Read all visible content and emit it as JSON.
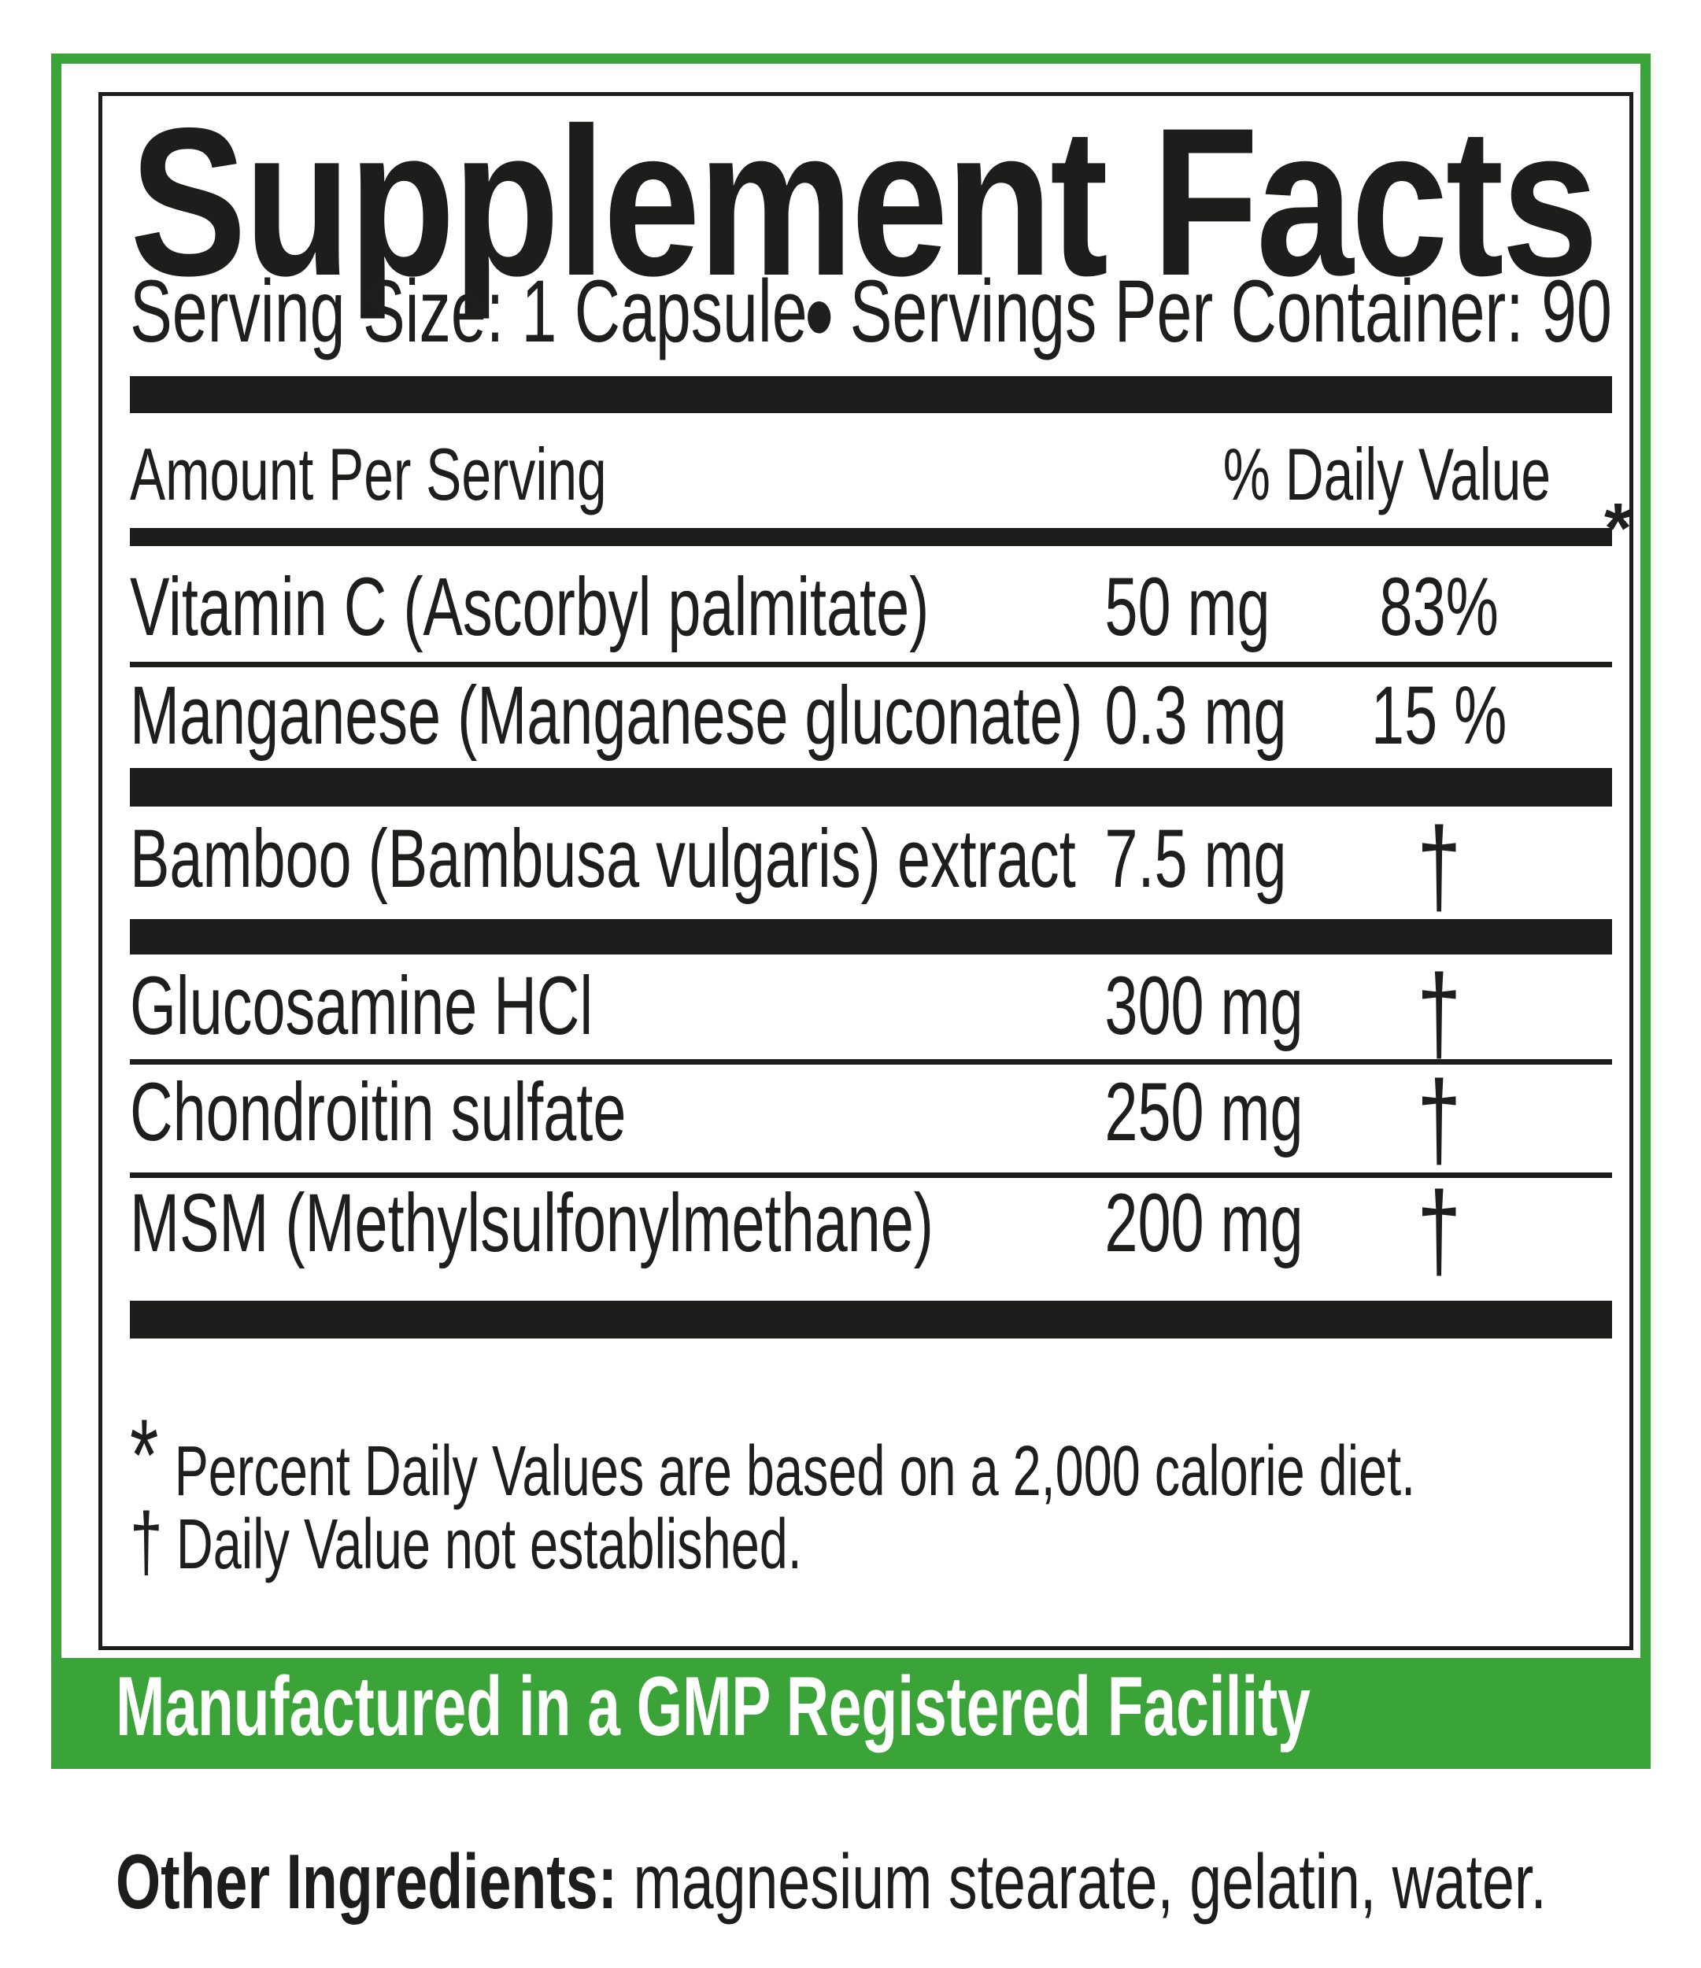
{
  "label": {
    "title": "Supplement Facts",
    "serving": {
      "size": "Serving Size: 1 Capsule",
      "separator": "•",
      "per_container": "Servings Per Container: 90"
    },
    "columns": {
      "amount_header": "Amount Per Serving",
      "dv_header": "% Daily Value",
      "dv_footnote_symbol": "*"
    },
    "rows": [
      {
        "name": "Vitamin C (Ascorbyl palmitate)",
        "amount": "50 mg",
        "dv": "83%"
      },
      {
        "name": "Manganese (Manganese gluconate)",
        "amount": "0.3 mg",
        "dv": "15 %"
      },
      {
        "name": "Bamboo (Bambusa vulgaris) extract",
        "amount": "7.5 mg",
        "dv": "†"
      },
      {
        "name": "Glucosamine HCl",
        "amount": "300 mg",
        "dv": "†"
      },
      {
        "name": "Chondroitin sulfate",
        "amount": "250 mg",
        "dv": "†"
      },
      {
        "name": "MSM (Methylsulfonylmethane)",
        "amount": "200 mg",
        "dv": "†"
      }
    ],
    "footnotes": [
      {
        "symbol": "*",
        "text": "Percent Daily Values are based on a 2,000 calorie diet."
      },
      {
        "symbol": "†",
        "text": "Daily Value not established."
      }
    ],
    "banner": "Manufactured in a GMP Registered Facility",
    "other_ingredients": {
      "label": "Other Ingredients:",
      "text": " magnesium stearate, gelatin, water."
    },
    "colors": {
      "green": "#3aa438",
      "black": "#1d1d1b",
      "white": "#ffffff"
    }
  }
}
